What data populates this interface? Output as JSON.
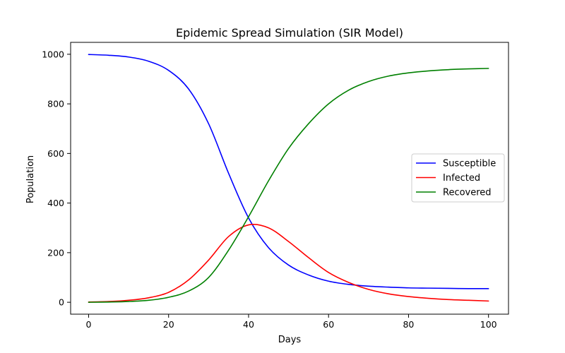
{
  "chart_data": {
    "type": "line",
    "title": "Epidemic Spread Simulation (SIR Model)",
    "xlabel": "Days",
    "ylabel": "Population",
    "xlim": [
      -4.5,
      105
    ],
    "ylim": [
      -48,
      1048
    ],
    "xticks": [
      0,
      20,
      40,
      60,
      80,
      100
    ],
    "yticks": [
      0,
      200,
      400,
      600,
      800,
      1000
    ],
    "grid": false,
    "legend_position": "center-right",
    "x": [
      0,
      5,
      10,
      15,
      20,
      25,
      30,
      35,
      40,
      45,
      50,
      55,
      60,
      65,
      70,
      75,
      80,
      85,
      90,
      95,
      100
    ],
    "series": [
      {
        "name": "Susceptible",
        "color": "#0000ff",
        "values": [
          999,
          996,
          989,
          972,
          935,
          860,
          720,
          520,
          340,
          220,
          150,
          110,
          85,
          72,
          65,
          61,
          58,
          57,
          56,
          55,
          55
        ]
      },
      {
        "name": "Infected",
        "color": "#ff0000",
        "values": [
          1,
          3,
          8,
          18,
          40,
          90,
          170,
          265,
          312,
          300,
          245,
          180,
          120,
          80,
          52,
          34,
          23,
          16,
          11,
          8,
          5
        ]
      },
      {
        "name": "Recovered",
        "color": "#008000",
        "values": [
          0,
          1,
          3,
          8,
          20,
          45,
          100,
          210,
          345,
          490,
          620,
          720,
          800,
          855,
          890,
          912,
          925,
          933,
          938,
          941,
          943
        ]
      }
    ]
  }
}
